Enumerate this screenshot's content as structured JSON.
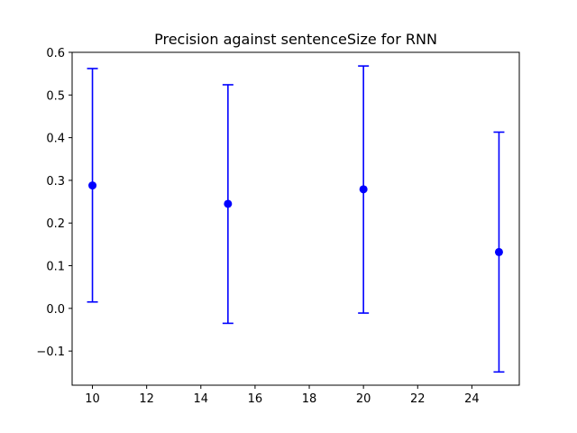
{
  "chart_data": {
    "type": "scatter",
    "title": "Precision against sentenceSize for RNN",
    "xlabel": "",
    "ylabel": "",
    "xlim": [
      9.25,
      25.75
    ],
    "ylim": [
      -0.18,
      0.6
    ],
    "xticks": [
      10,
      12,
      14,
      16,
      18,
      20,
      22,
      24
    ],
    "yticks": [
      -0.1,
      0.0,
      0.1,
      0.2,
      0.3,
      0.4,
      0.5,
      0.6
    ],
    "xtick_labels": [
      "10",
      "12",
      "14",
      "16",
      "18",
      "20",
      "22",
      "24"
    ],
    "ytick_labels": [
      "−0.1",
      "0.0",
      "0.1",
      "0.2",
      "0.3",
      "0.4",
      "0.5",
      "0.6"
    ],
    "grid": false,
    "series": [
      {
        "color": "#0000ff",
        "marker": "circle",
        "error_bars": true,
        "points": [
          {
            "x": 10,
            "y": 0.288,
            "err_low": 0.015,
            "err_high": 0.562
          },
          {
            "x": 15,
            "y": 0.245,
            "err_low": -0.035,
            "err_high": 0.524
          },
          {
            "x": 20,
            "y": 0.279,
            "err_low": -0.011,
            "err_high": 0.568
          },
          {
            "x": 25,
            "y": 0.132,
            "err_low": -0.149,
            "err_high": 0.413
          }
        ]
      }
    ]
  }
}
